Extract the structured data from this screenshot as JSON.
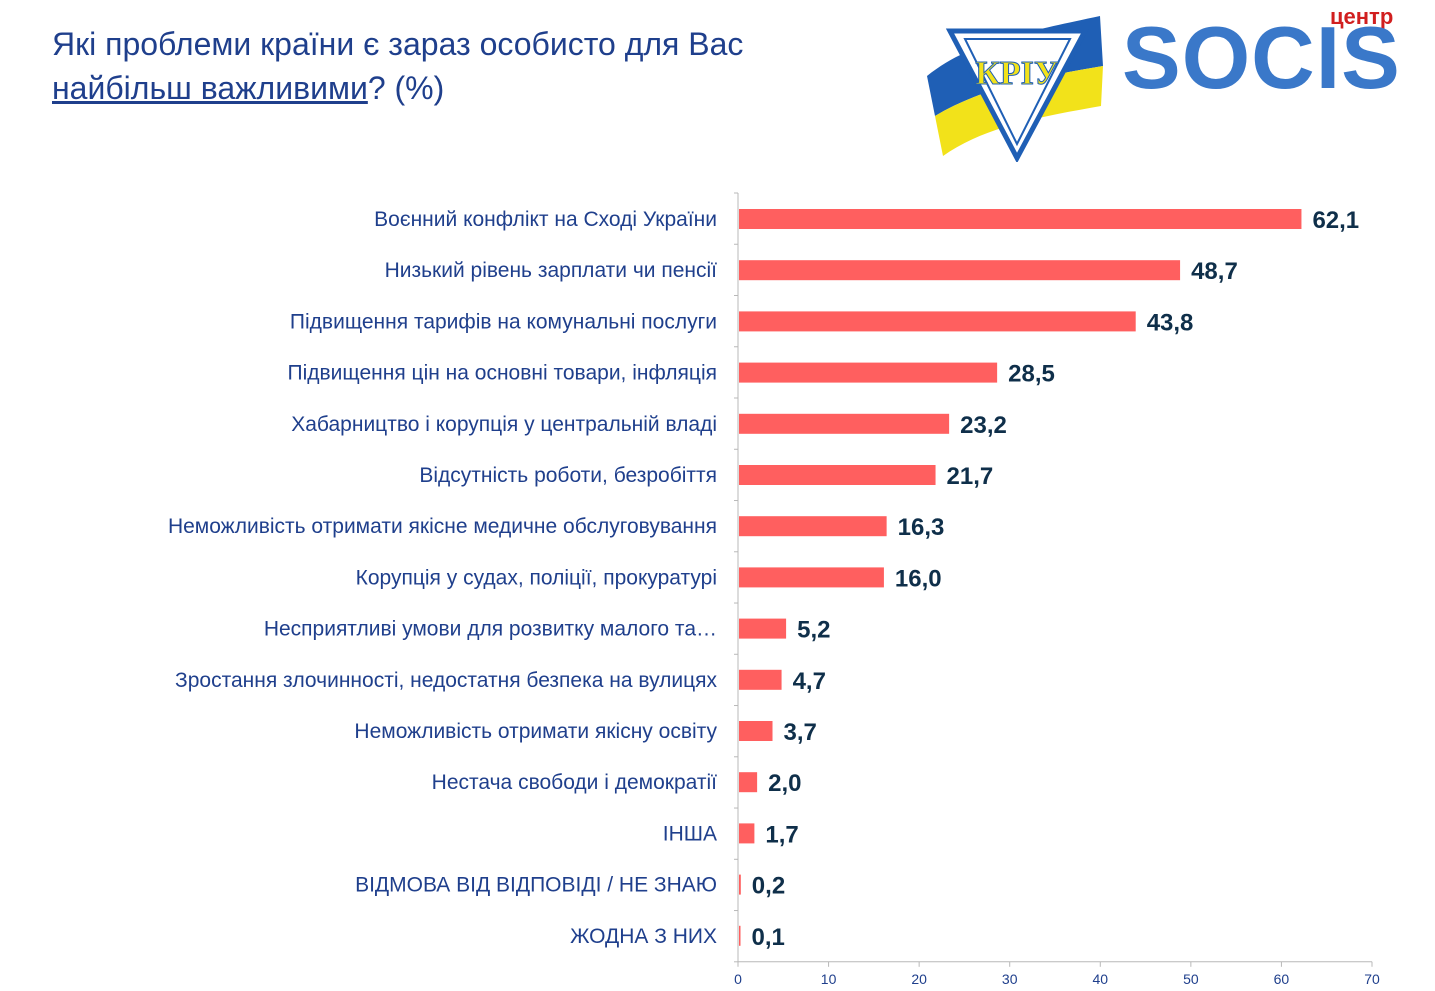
{
  "title": {
    "line1": "Які проблеми країни є зараз особисто для Вас",
    "line2_underlined": "найбільш важливими",
    "line2_rest": "? (%)"
  },
  "logos": {
    "kriu_text": "КРІУ",
    "socis_small": "центр",
    "socis_big": "SOCIS",
    "colors": {
      "blue": "#1f5fb5",
      "yellow": "#f2e21a",
      "red": "#d11f1f",
      "socis_blue": "#3a78c9"
    }
  },
  "chart_data": {
    "type": "bar",
    "orientation": "horizontal",
    "categories": [
      "Воєнний конфлікт на Сході України",
      "Низький рівень зарплати чи пенсії",
      "Підвищення тарифів на комунальні послуги",
      "Підвищення цін на основні товари, інфляція",
      "Хабарництво і корупція у центральній владі",
      "Відсутність роботи, безробіття",
      "Неможливість отримати якісне медичне обслуговування",
      "Корупція у судах, поліції, прокуратурі",
      "Несприятливі умови для розвитку малого та…",
      "Зростання злочинності, недостатня безпека на вулицях",
      "Неможливість отримати якісну освіту",
      "Нестача свободи і демократії",
      "ІНША",
      "ВІДМОВА ВІД ВІДПОВІДІ / НЕ ЗНАЮ",
      "ЖОДНА З НИХ"
    ],
    "values": [
      62.1,
      48.7,
      43.8,
      28.5,
      23.2,
      21.7,
      16.3,
      16.0,
      5.2,
      4.7,
      3.7,
      2.0,
      1.7,
      0.2,
      0.1
    ],
    "value_labels": [
      "62,1",
      "48,7",
      "43,8",
      "28,5",
      "23,2",
      "21,7",
      "16,3",
      "16,0",
      "5,2",
      "4,7",
      "3,7",
      "2,0",
      "1,7",
      "0,2",
      "0,1"
    ],
    "xlim": [
      0,
      70
    ],
    "xticks": [
      0,
      10,
      20,
      30,
      40,
      50,
      60,
      70
    ],
    "bar_color": "#ff5f5f",
    "grid": false
  }
}
